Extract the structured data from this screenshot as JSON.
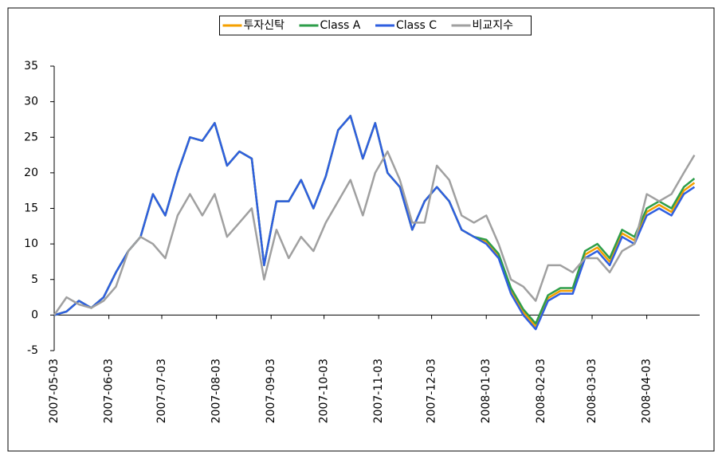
{
  "chart_data": {
    "type": "line",
    "x": [
      "2007-05-03",
      "2007-05-10",
      "2007-05-17",
      "2007-05-24",
      "2007-05-31",
      "2007-06-07",
      "2007-06-14",
      "2007-06-21",
      "2007-06-28",
      "2007-07-05",
      "2007-07-12",
      "2007-07-19",
      "2007-07-26",
      "2007-08-02",
      "2007-08-09",
      "2007-08-16",
      "2007-08-23",
      "2007-08-30",
      "2007-09-06",
      "2007-09-13",
      "2007-09-20",
      "2007-09-27",
      "2007-10-04",
      "2007-10-11",
      "2007-10-18",
      "2007-10-25",
      "2007-11-01",
      "2007-11-08",
      "2007-11-15",
      "2007-11-22",
      "2007-11-29",
      "2007-12-06",
      "2007-12-13",
      "2007-12-20",
      "2007-12-27",
      "2008-01-03",
      "2008-01-10",
      "2008-01-17",
      "2008-01-24",
      "2008-01-31",
      "2008-02-07",
      "2008-02-14",
      "2008-02-21",
      "2008-02-28",
      "2008-03-06",
      "2008-03-13",
      "2008-03-20",
      "2008-03-27",
      "2008-04-03",
      "2008-04-10",
      "2008-04-17",
      "2008-04-24",
      "2008-04-30"
    ],
    "series": [
      {
        "name": "투자신탁",
        "color": "#f5a000",
        "values": [
          0,
          0.5,
          2,
          1,
          2.5,
          6,
          9,
          11,
          17,
          14,
          20,
          25,
          24.5,
          27,
          21,
          23,
          22,
          7,
          16,
          16,
          19,
          15,
          19.5,
          26,
          28,
          22,
          27,
          20,
          18,
          12,
          16,
          18,
          16,
          12,
          11,
          10.3,
          8.3,
          3.4,
          0.4,
          -1.6,
          2.4,
          3.4,
          3.4,
          8.5,
          9.5,
          7.5,
          11.5,
          10.5,
          14.5,
          15.5,
          14.5,
          17.5,
          18.6
        ]
      },
      {
        "name": "Class A",
        "color": "#2e9e4a",
        "values": [
          0,
          0.5,
          2,
          1,
          2.5,
          6,
          9,
          11,
          17,
          14,
          20,
          25,
          24.5,
          27,
          21,
          23,
          22,
          7,
          16,
          16,
          19,
          15,
          19.5,
          26,
          28,
          22,
          27,
          20,
          18,
          12,
          16,
          18,
          16,
          12,
          11,
          10.6,
          8.6,
          3.8,
          0.8,
          -1.2,
          2.8,
          3.8,
          3.8,
          9,
          10,
          8,
          12,
          11,
          15,
          16,
          15,
          18,
          19.2
        ]
      },
      {
        "name": "Class C",
        "color": "#2f5fe0",
        "values": [
          0,
          0.5,
          2,
          1,
          2.5,
          6,
          9,
          11,
          17,
          14,
          20,
          25,
          24.5,
          27,
          21,
          23,
          22,
          7,
          16,
          16,
          19,
          15,
          19.5,
          26,
          28,
          22,
          27,
          20,
          18,
          12,
          16,
          18,
          16,
          12,
          11,
          10,
          8,
          3,
          0,
          -2,
          2,
          3,
          3,
          8,
          9,
          7,
          11,
          10,
          14,
          15,
          14,
          17,
          18
        ]
      },
      {
        "name": "비교지수",
        "color": "#a0a0a0",
        "values": [
          0,
          2.5,
          1.5,
          1,
          2,
          4,
          9,
          11,
          10,
          8,
          14,
          17,
          14,
          17,
          11,
          13,
          15,
          5,
          12,
          8,
          11,
          9,
          13,
          16,
          19,
          14,
          20,
          23,
          19,
          13,
          13,
          21,
          19,
          14,
          13,
          14,
          10,
          5,
          4,
          2,
          7,
          7,
          6,
          8,
          8,
          6,
          9,
          10,
          17,
          16,
          17,
          20,
          22.5
        ]
      }
    ],
    "xlim": [
      "2007-05-03",
      "2008-05-03"
    ],
    "xticks": [
      "2007-05-03",
      "2007-06-03",
      "2007-07-03",
      "2007-08-03",
      "2007-09-03",
      "2007-10-03",
      "2007-11-03",
      "2007-12-03",
      "2008-01-03",
      "2008-02-03",
      "2008-03-03",
      "2008-04-03"
    ],
    "ylim": [
      -5,
      35
    ],
    "yticks": [
      -5,
      0,
      5,
      10,
      15,
      20,
      25,
      30,
      35
    ],
    "grid": false,
    "legend": "top"
  }
}
